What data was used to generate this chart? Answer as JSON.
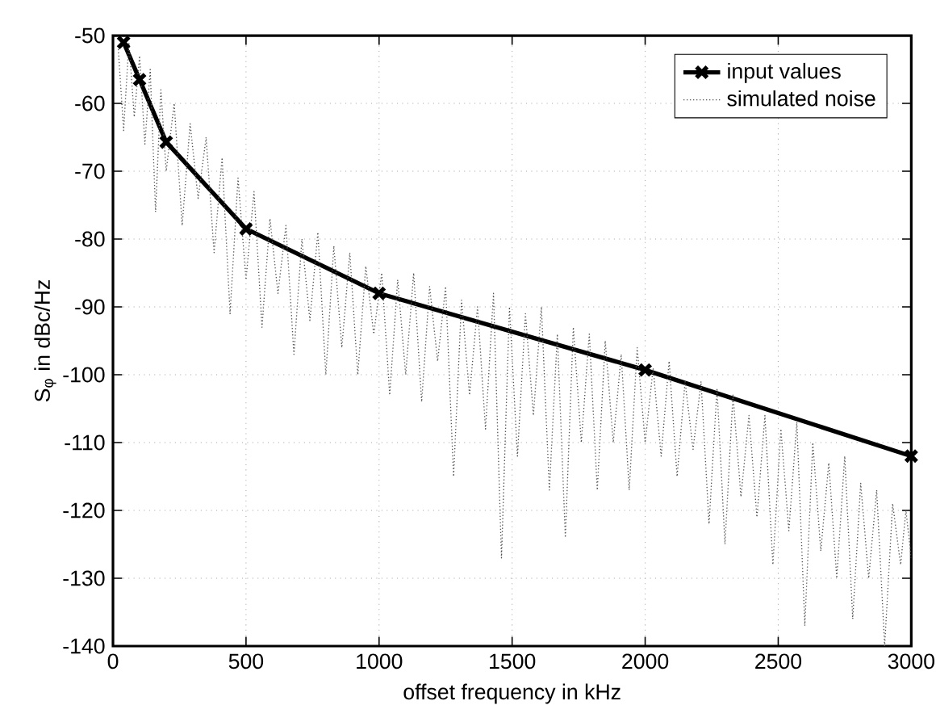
{
  "chart_data": {
    "type": "line",
    "xlabel": "offset frequency in kHz",
    "ylabel": "S$_{φ}$ in dBc/Hz",
    "xlim": [
      0,
      3000
    ],
    "ylim": [
      -140,
      -50
    ],
    "xticks": [
      0,
      500,
      1000,
      1500,
      2000,
      2500,
      3000
    ],
    "yticks": [
      -140,
      -130,
      -120,
      -110,
      -100,
      -90,
      -80,
      -70,
      -60,
      -50
    ],
    "grid": true,
    "legend": "top right",
    "series": [
      {
        "name": "input values",
        "color": "#000000",
        "marker": "cross",
        "line_style": "solid",
        "x": [
          40,
          100,
          200,
          500,
          1000,
          2000,
          3000
        ],
        "values": [
          -51,
          -56.5,
          -65.7,
          -78.5,
          -88,
          -99.3,
          -112
        ]
      },
      {
        "name": "simulated noise",
        "color": "#555555",
        "marker": "none",
        "line_style": "dotted",
        "x": [
          20,
          40,
          60,
          80,
          100,
          120,
          140,
          160,
          180,
          200,
          230,
          260,
          290,
          320,
          350,
          380,
          410,
          440,
          470,
          500,
          530,
          560,
          590,
          620,
          650,
          680,
          710,
          740,
          770,
          800,
          830,
          860,
          890,
          920,
          950,
          980,
          1010,
          1040,
          1070,
          1100,
          1130,
          1160,
          1190,
          1220,
          1250,
          1280,
          1310,
          1340,
          1370,
          1400,
          1430,
          1460,
          1490,
          1520,
          1550,
          1580,
          1610,
          1640,
          1670,
          1700,
          1730,
          1760,
          1790,
          1820,
          1850,
          1880,
          1910,
          1940,
          1970,
          2000,
          2030,
          2060,
          2090,
          2120,
          2150,
          2180,
          2210,
          2240,
          2270,
          2300,
          2330,
          2360,
          2390,
          2420,
          2450,
          2480,
          2510,
          2540,
          2570,
          2600,
          2630,
          2660,
          2690,
          2720,
          2750,
          2780,
          2810,
          2840,
          2870,
          2900,
          2930,
          2960,
          2980,
          3000
        ],
        "values": [
          -52,
          -64,
          -51,
          -62,
          -53,
          -66,
          -55,
          -76,
          -58,
          -70,
          -60,
          -78,
          -63,
          -74,
          -65,
          -82,
          -68,
          -91,
          -71,
          -86,
          -73,
          -93,
          -77,
          -88,
          -78,
          -97,
          -80,
          -92,
          -79,
          -100,
          -81,
          -96,
          -82,
          -100,
          -84,
          -94,
          -85,
          -103,
          -86,
          -100,
          -85,
          -104,
          -87,
          -98,
          -87,
          -115,
          -89,
          -103,
          -90,
          -108,
          -88,
          -127,
          -90,
          -112,
          -91,
          -106,
          -90,
          -117,
          -94,
          -124,
          -93,
          -110,
          -94,
          -117,
          -95,
          -110,
          -97,
          -117,
          -96,
          -110,
          -99,
          -112,
          -98,
          -115,
          -101,
          -111,
          -101,
          -122,
          -102,
          -125,
          -103,
          -118,
          -106,
          -121,
          -106,
          -128,
          -108,
          -123,
          -107,
          -137,
          -110,
          -126,
          -113,
          -130,
          -112,
          -136,
          -116,
          -130,
          -117,
          -140,
          -119,
          -128,
          -120,
          -127
        ]
      }
    ]
  }
}
